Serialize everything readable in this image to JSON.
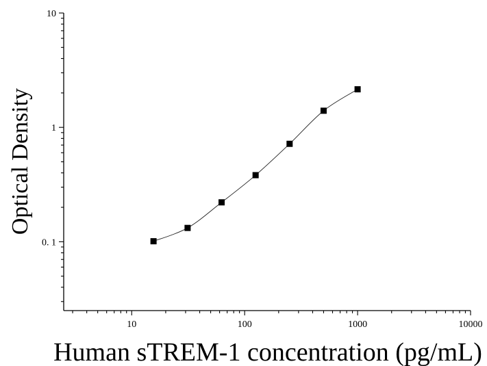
{
  "chart_data": {
    "type": "scatter",
    "xlabel": "Human sTREM-1 concentration (pg/mL)",
    "ylabel": "Optical Density",
    "xscale": "log",
    "yscale": "log",
    "xlim": [
      2.5,
      10000
    ],
    "ylim": [
      0.025,
      10
    ],
    "x_ticks": [
      10,
      100,
      1000,
      10000
    ],
    "x_tick_labels": [
      "10",
      "100",
      "1000",
      "10000"
    ],
    "y_ticks": [
      0.1,
      1,
      10
    ],
    "y_tick_labels": [
      "0. 1",
      "1",
      "10"
    ],
    "grid": false,
    "legend": "none",
    "series": [
      {
        "values": [
          {
            "x": 15.6,
            "y": 0.101
          },
          {
            "x": 31.25,
            "y": 0.132
          },
          {
            "x": 62.5,
            "y": 0.221
          },
          {
            "x": 125,
            "y": 0.382
          },
          {
            "x": 250,
            "y": 0.718
          },
          {
            "x": 500,
            "y": 1.398
          },
          {
            "x": 1000,
            "y": 2.152
          }
        ],
        "marker": "square",
        "color": "#000000",
        "fit": "smooth-curve"
      }
    ]
  }
}
